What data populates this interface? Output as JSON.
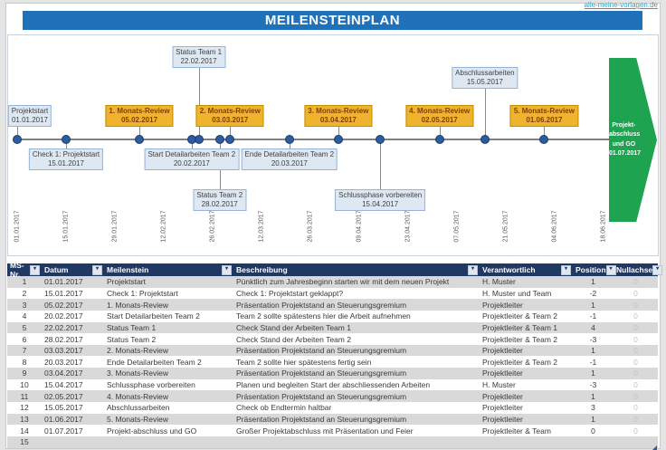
{
  "page": {
    "watermark": "alle-meine-vorlagen.de",
    "title": "MEILENSTEINPLAN"
  },
  "colors": {
    "title_bar": "#1f72b9",
    "table_header": "#1f3864",
    "row_stripe": "#d9d9d9",
    "milestone_blue_bg": "#dde8f3",
    "milestone_orange_bg": "#f0b32d",
    "end_arrow_green": "#1ea351",
    "dot_blue": "#2e5b9e",
    "watermark_teal": "#2e9fc2"
  },
  "timeline": {
    "axis_dates": [
      "01.01.2017",
      "15.01.2017",
      "29.01.2017",
      "12.02.2017",
      "26.02.2017",
      "12.03.2017",
      "26.03.2017",
      "09.04.2017",
      "23.04.2017",
      "07.05.2017",
      "21.05.2017",
      "04.06.2017",
      "18.06.2017"
    ],
    "milestones": [
      {
        "name": "Projektstart",
        "date": "01.01.2017",
        "style": "blue",
        "tier": "above",
        "label_dx": 14
      },
      {
        "name": "Check 1: Projektstart",
        "date": "15.01.2017",
        "style": "blue",
        "tier": "below",
        "label_dx": 0
      },
      {
        "name": "1. Monats-Review",
        "date": "05.02.2017",
        "style": "orange",
        "tier": "above",
        "label_dx": 0
      },
      {
        "name": "Start Detailarbeiten Team 2",
        "date": "20.02.2017",
        "style": "blue",
        "tier": "below",
        "label_dx": 0
      },
      {
        "name": "Status Team 1",
        "date": "22.02.2017",
        "style": "blue",
        "tier": "high1",
        "label_dx": 0
      },
      {
        "name": "Status Team 2",
        "date": "28.02.2017",
        "style": "blue",
        "tier": "low",
        "label_dx": 0
      },
      {
        "name": "2. Monats-Review",
        "date": "03.03.2017",
        "style": "orange",
        "tier": "above",
        "label_dx": 0
      },
      {
        "name": "Ende Detailarbeiten Team 2",
        "date": "20.03.2017",
        "style": "blue",
        "tier": "below",
        "label_dx": 0
      },
      {
        "name": "3. Monats-Review",
        "date": "03.04.2017",
        "style": "orange",
        "tier": "above",
        "label_dx": 0
      },
      {
        "name": "Schlussphase vorbereiten",
        "date": "15.04.2017",
        "style": "blue",
        "tier": "low",
        "label_dx": 0
      },
      {
        "name": "4. Monats-Review",
        "date": "02.05.2017",
        "style": "orange",
        "tier": "above",
        "label_dx": 0
      },
      {
        "name": "Abschlussarbeiten",
        "date": "15.05.2017",
        "style": "blue",
        "tier": "high2",
        "label_dx": 0
      },
      {
        "name": "5. Monats-Review",
        "date": "01.06.2017",
        "style": "orange",
        "tier": "above",
        "label_dx": 0
      }
    ],
    "end_marker": {
      "lines": [
        "Projekt-",
        "abschluss",
        "und GO",
        "01.07.2017"
      ]
    }
  },
  "table": {
    "columns": [
      "MS-Nr.",
      "Datum",
      "Meilenstein",
      "Beschreibung",
      "Verantwortlich",
      "Position",
      "Nullachse"
    ],
    "rows": [
      {
        "nr": "1",
        "datum": "01.01.2017",
        "meilenstein": "Projektstart",
        "beschreibung": "Pünktlich zum Jahresbeginn starten wir mit dem neuen Projekt",
        "verantwortlich": "H. Muster",
        "position": "1",
        "nullachse": "0"
      },
      {
        "nr": "2",
        "datum": "15.01.2017",
        "meilenstein": "Check 1: Projektstart",
        "beschreibung": "Check 1: Projektstart geklappt?",
        "verantwortlich": "H. Muster und Team",
        "position": "-2",
        "nullachse": "0"
      },
      {
        "nr": "3",
        "datum": "05.02.2017",
        "meilenstein": "1. Monats-Review",
        "beschreibung": "Präsentation Projektstand an Steuerungsgremium",
        "verantwortlich": "Projektleiter",
        "position": "1",
        "nullachse": "0"
      },
      {
        "nr": "4",
        "datum": "20.02.2017",
        "meilenstein": "Start Detailarbeiten Team 2",
        "beschreibung": "Team 2 sollte spätestens hier die Arbeit aufnehmen",
        "verantwortlich": "Projektleiter & Team 2",
        "position": "-1",
        "nullachse": "0"
      },
      {
        "nr": "5",
        "datum": "22.02.2017",
        "meilenstein": "Status Team 1",
        "beschreibung": "Check Stand der Arbeiten Team 1",
        "verantwortlich": "Projektleiter & Team 1",
        "position": "4",
        "nullachse": "0"
      },
      {
        "nr": "6",
        "datum": "28.02.2017",
        "meilenstein": "Status Team 2",
        "beschreibung": "Check Stand der Arbeiten Team 2",
        "verantwortlich": "Projektleiter & Team 2",
        "position": "-3",
        "nullachse": "0"
      },
      {
        "nr": "7",
        "datum": "03.03.2017",
        "meilenstein": "2. Monats-Review",
        "beschreibung": "Präsentation Projektstand an Steuerungsgremium",
        "verantwortlich": "Projektleiter",
        "position": "1",
        "nullachse": "0"
      },
      {
        "nr": "8",
        "datum": "20.03.2017",
        "meilenstein": "Ende Detailarbeiten Team 2",
        "beschreibung": "Team 2 sollte hier spätestens fertig sein",
        "verantwortlich": "Projektleiter & Team 2",
        "position": "-1",
        "nullachse": "0"
      },
      {
        "nr": "9",
        "datum": "03.04.2017",
        "meilenstein": "3. Monats-Review",
        "beschreibung": "Präsentation Projektstand an Steuerungsgremium",
        "verantwortlich": "Projektleiter",
        "position": "1",
        "nullachse": "0"
      },
      {
        "nr": "10",
        "datum": "15.04.2017",
        "meilenstein": "Schlussphase vorbereiten",
        "beschreibung": "Planen und begleiten Start der abschliessenden Arbeiten",
        "verantwortlich": "H. Muster",
        "position": "-3",
        "nullachse": "0"
      },
      {
        "nr": "11",
        "datum": "02.05.2017",
        "meilenstein": "4. Monats-Review",
        "beschreibung": "Präsentation Projektstand an Steuerungsgremium",
        "verantwortlich": "Projektleiter",
        "position": "1",
        "nullachse": "0"
      },
      {
        "nr": "12",
        "datum": "15.05.2017",
        "meilenstein": "Abschlussarbeiten",
        "beschreibung": "Check ob Endtermin haltbar",
        "verantwortlich": "Projektleiter",
        "position": "3",
        "nullachse": "0"
      },
      {
        "nr": "13",
        "datum": "01.06.2017",
        "meilenstein": "5. Monats-Review",
        "beschreibung": "Präsentation Projektstand an Steuerungsgremium",
        "verantwortlich": "Projektleiter",
        "position": "1",
        "nullachse": "0"
      },
      {
        "nr": "14",
        "datum": "01.07.2017",
        "meilenstein": "Projekt-abschluss und GO",
        "beschreibung": "Großer Projektabschluss mit Präsentation und Feier",
        "verantwortlich": "Projektleiter & Team",
        "position": "0",
        "nullachse": "0"
      },
      {
        "nr": "15",
        "datum": "",
        "meilenstein": "",
        "beschreibung": "",
        "verantwortlich": "",
        "position": "",
        "nullachse": ""
      }
    ]
  }
}
